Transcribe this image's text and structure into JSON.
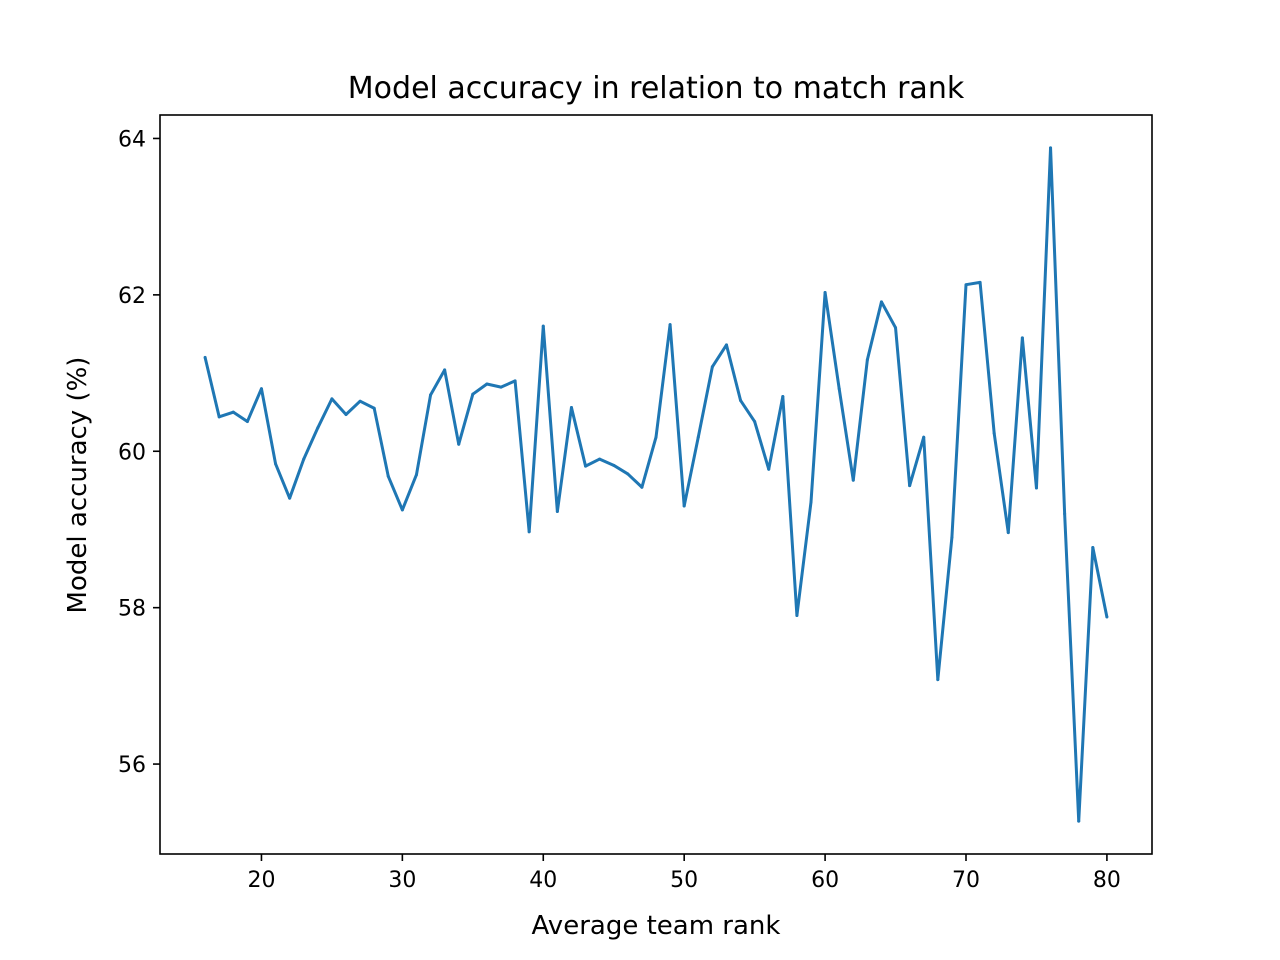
{
  "chart_data": {
    "type": "line",
    "title": "Model accuracy in relation to match rank",
    "xlabel": "Average team rank",
    "ylabel": "Model accuracy (%)",
    "xlim": [
      12.8,
      83.2
    ],
    "ylim": [
      54.85,
      64.3
    ],
    "xticks": [
      20,
      30,
      40,
      50,
      60,
      70,
      80
    ],
    "yticks": [
      56,
      58,
      60,
      62,
      64
    ],
    "grid": false,
    "colors": {
      "line": "#1f77b4",
      "axes": "#000000",
      "background": "#ffffff"
    },
    "series": [
      {
        "x": [
          16,
          17,
          18,
          19,
          20,
          21,
          22,
          23,
          24,
          25,
          26,
          27,
          28,
          29,
          30,
          31,
          32,
          33,
          34,
          35,
          36,
          37,
          38,
          39,
          40,
          41,
          42,
          43,
          44,
          45,
          46,
          47,
          48,
          49,
          50,
          51,
          52,
          53,
          54,
          55,
          56,
          57,
          58,
          59,
          60,
          61,
          62,
          63,
          64,
          65,
          66,
          67,
          68,
          69,
          70,
          71,
          72,
          73,
          74,
          75,
          76,
          77,
          78,
          79,
          80
        ],
        "y": [
          61.2,
          60.44,
          60.5,
          60.38,
          60.8,
          59.84,
          59.4,
          59.9,
          60.3,
          60.67,
          60.47,
          60.64,
          60.55,
          59.68,
          59.25,
          59.7,
          60.72,
          61.04,
          60.09,
          60.73,
          60.86,
          60.82,
          60.9,
          58.97,
          61.6,
          59.23,
          60.56,
          59.81,
          59.9,
          59.82,
          59.71,
          59.54,
          60.18,
          61.62,
          59.3,
          60.18,
          61.08,
          61.36,
          60.65,
          60.38,
          59.77,
          60.7,
          57.9,
          59.35,
          62.03,
          60.8,
          59.63,
          61.17,
          61.91,
          61.58,
          59.56,
          60.18,
          57.08,
          58.9,
          62.13,
          62.16,
          60.23,
          58.96,
          61.45,
          59.53,
          63.88,
          59.2,
          55.27,
          58.77,
          57.88
        ]
      }
    ]
  }
}
